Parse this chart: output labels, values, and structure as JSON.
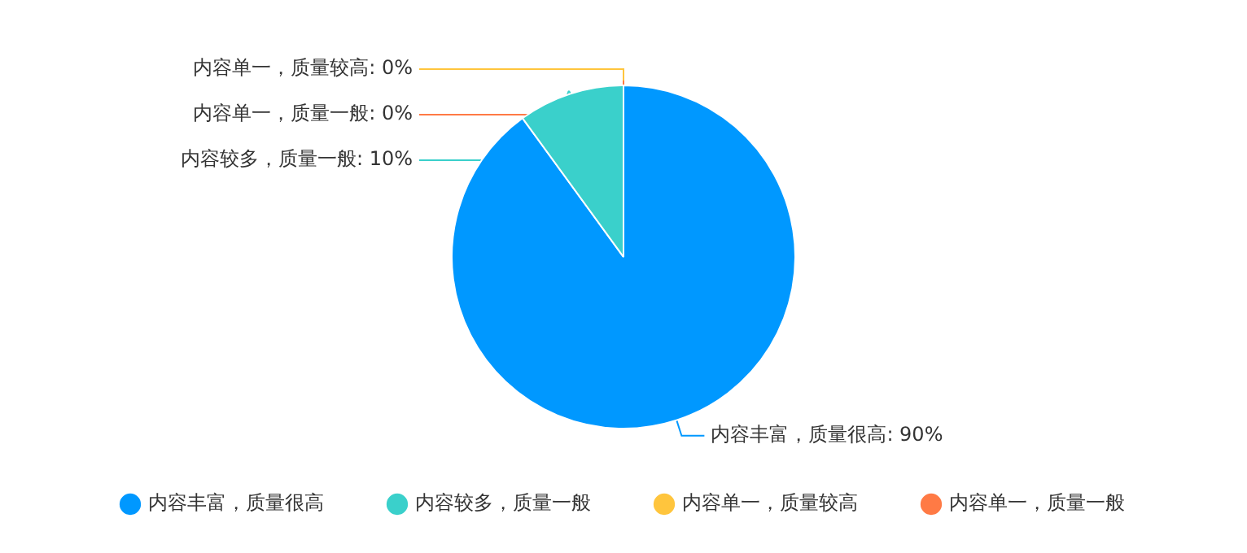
{
  "chart_data": {
    "type": "pie",
    "categories": [
      "内容丰富，质量很高",
      "内容较多，质量一般",
      "内容单一，质量较高",
      "内容单一，质量一般"
    ],
    "values": [
      90,
      10,
      0,
      0
    ],
    "value_labels": [
      ": 90%",
      ": 10%",
      ": 0%",
      ": 0%"
    ],
    "colors": [
      "#0098ff",
      "#3ad0cb",
      "#ffc53d",
      "#ff7a45"
    ],
    "legend": "bottom"
  }
}
